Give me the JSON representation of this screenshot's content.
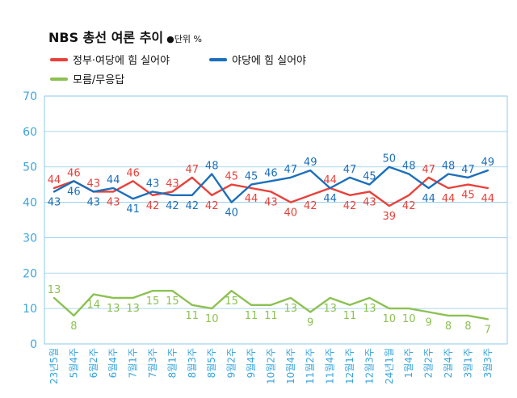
{
  "header": {
    "title": "NBS 총선 여론 추이",
    "unit": "●단위 %"
  },
  "colors": {
    "red": "#e8413a",
    "blue": "#1b6fba",
    "green": "#8cc152",
    "axis": "#3aa6dc",
    "grid": "#8fc9ea"
  },
  "chart_data": {
    "type": "line",
    "title": "NBS 총선 여론 추이",
    "unit": "%",
    "ylim": [
      0,
      70
    ],
    "yticks": [
      0,
      10,
      20,
      30,
      40,
      50,
      60,
      70
    ],
    "grid": true,
    "legend_position": "top-left",
    "categories": [
      "23년5월",
      "5월4주",
      "6월2주",
      "6월4주",
      "7월1주",
      "7월3주",
      "8월1주",
      "8월3주",
      "8월5주",
      "9월2주",
      "9월4주",
      "10월2주",
      "10월4주",
      "11월2주",
      "11월4주",
      "12월1주",
      "12월3주",
      "24년1월",
      "1월4주",
      "2월2주",
      "2월4주",
      "3월1주",
      "3월3주"
    ],
    "series": [
      {
        "name": "정부·여당에 힘 실어야",
        "color": "red",
        "values": [
          44,
          46,
          43,
          43,
          46,
          42,
          43,
          47,
          42,
          45,
          44,
          43,
          40,
          42,
          44,
          42,
          43,
          39,
          42,
          47,
          44,
          45,
          44
        ]
      },
      {
        "name": "야당에 힘 실어야",
        "color": "blue",
        "values": [
          43,
          46,
          43,
          44,
          41,
          43,
          42,
          42,
          48,
          40,
          45,
          46,
          47,
          49,
          44,
          47,
          45,
          50,
          48,
          44,
          48,
          47,
          49
        ]
      },
      {
        "name": "모름/무응답",
        "color": "green",
        "values": [
          13,
          8,
          14,
          13,
          13,
          15,
          15,
          11,
          10,
          15,
          11,
          11,
          13,
          9,
          13,
          11,
          13,
          10,
          10,
          9,
          8,
          8,
          7
        ]
      }
    ]
  }
}
